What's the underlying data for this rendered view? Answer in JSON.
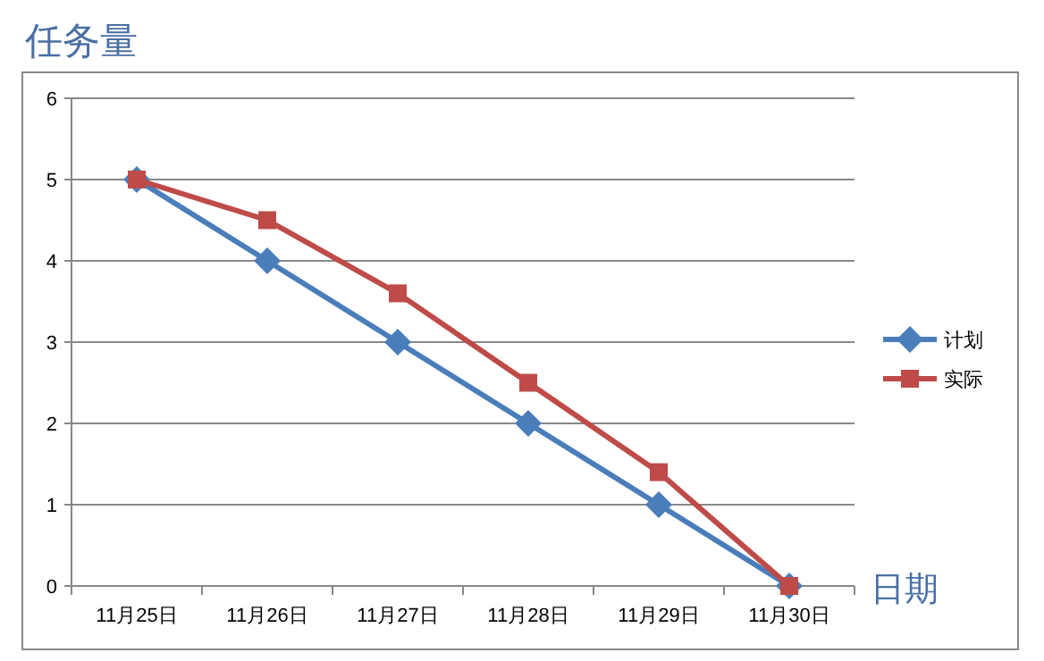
{
  "chart_data": {
    "type": "line",
    "ylabel": "任务量",
    "xlabel": "日期",
    "categories": [
      "11月25日",
      "11月26日",
      "11月27日",
      "11月28日",
      "11月29日",
      "11月30日"
    ],
    "series": [
      {
        "name": "计划",
        "color": "#4a7ebb",
        "marker": "diamond",
        "values": [
          5,
          4,
          3,
          2,
          1,
          0
        ]
      },
      {
        "name": "实际",
        "color": "#be4b48",
        "marker": "square",
        "values": [
          5,
          4.5,
          3.6,
          2.5,
          1.4,
          0
        ]
      }
    ],
    "ylim": [
      0,
      6
    ],
    "yticks": [
      0,
      1,
      2,
      3,
      4,
      5,
      6
    ],
    "grid": "y",
    "legend": "right",
    "line_style": "solid"
  }
}
